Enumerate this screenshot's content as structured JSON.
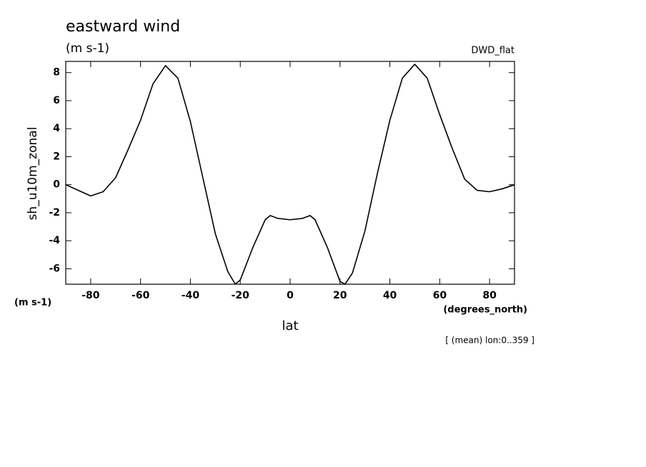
{
  "chart_data": {
    "type": "line",
    "title": "eastward wind",
    "units": "(m s-1)",
    "dataset": "DWD_flat",
    "y_label": "sh_u10m_zonal",
    "y_units": "(m s-1)",
    "x_label": "lat",
    "x_units": "(degrees_north)",
    "note": "[ (mean) lon:0..359 ]",
    "x": [
      -90,
      -85,
      -80,
      -75,
      -70,
      -65,
      -60,
      -55,
      -50,
      -45,
      -40,
      -35,
      -30,
      -25,
      -22,
      -20,
      -15,
      -10,
      -8,
      -5,
      0,
      5,
      8,
      10,
      15,
      20,
      22,
      25,
      30,
      35,
      40,
      45,
      50,
      55,
      60,
      65,
      70,
      75,
      80,
      85,
      90
    ],
    "values": [
      0,
      -0.4,
      -0.8,
      -0.5,
      0.5,
      2.5,
      4.6,
      7.2,
      8.5,
      7.6,
      4.5,
      0.5,
      -3.5,
      -6.2,
      -7.1,
      -6.8,
      -4.5,
      -2.5,
      -2.2,
      -2.4,
      -2.5,
      -2.4,
      -2.2,
      -2.5,
      -4.5,
      -6.9,
      -7.1,
      -6.3,
      -3.3,
      0.8,
      4.6,
      7.6,
      8.6,
      7.6,
      5.0,
      2.6,
      0.4,
      -0.4,
      -0.5,
      -0.3,
      0
    ],
    "color": "#000000",
    "xlim": [
      -90,
      90
    ],
    "xticks": [
      -80,
      -60,
      -40,
      -20,
      0,
      20,
      40,
      60,
      80
    ],
    "ylim": [
      -7.1,
      8.8
    ],
    "yticks": [
      -6,
      -4,
      -2,
      0,
      2,
      4,
      6,
      8
    ]
  }
}
